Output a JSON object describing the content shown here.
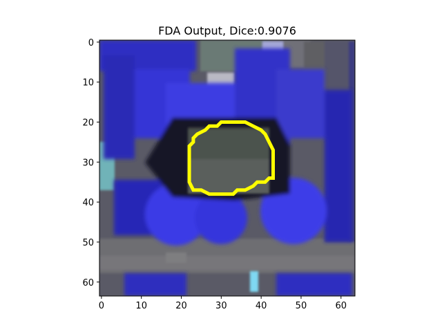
{
  "figure": {
    "title": "FDA Output, Dice:0.9076"
  },
  "chart_data": {
    "type": "heatmap",
    "title": "FDA Output, Dice:0.9076",
    "xlim": [
      -0.5,
      63.5
    ],
    "ylim": [
      63.5,
      -0.5
    ],
    "x_ticks": [
      0,
      10,
      20,
      30,
      40,
      50,
      60
    ],
    "y_ticks": [
      0,
      10,
      20,
      30,
      40,
      50,
      60
    ],
    "x_tick_labels": [
      "0",
      "10",
      "20",
      "30",
      "40",
      "50",
      "60"
    ],
    "y_tick_labels": [
      "0",
      "10",
      "20",
      "30",
      "40",
      "50",
      "60"
    ],
    "grid": false,
    "contour_color": "#ffff00",
    "contour": [
      [
        32,
        20
      ],
      [
        36,
        20
      ],
      [
        38,
        21
      ],
      [
        40,
        22
      ],
      [
        41,
        23
      ],
      [
        42,
        25
      ],
      [
        43,
        27
      ],
      [
        43,
        30
      ],
      [
        43,
        34
      ],
      [
        42,
        34
      ],
      [
        41,
        35
      ],
      [
        39,
        35
      ],
      [
        38,
        36
      ],
      [
        36,
        37
      ],
      [
        34,
        37
      ],
      [
        33,
        38
      ],
      [
        30,
        38
      ],
      [
        27,
        38
      ],
      [
        25,
        37
      ],
      [
        23,
        37
      ],
      [
        22,
        35
      ],
      [
        22,
        32
      ],
      [
        22,
        29
      ],
      [
        22,
        26
      ],
      [
        23,
        25
      ],
      [
        23,
        24
      ],
      [
        24,
        23
      ],
      [
        26,
        22
      ],
      [
        27,
        21
      ],
      [
        29,
        21
      ],
      [
        30,
        20
      ],
      [
        32,
        20
      ]
    ]
  }
}
